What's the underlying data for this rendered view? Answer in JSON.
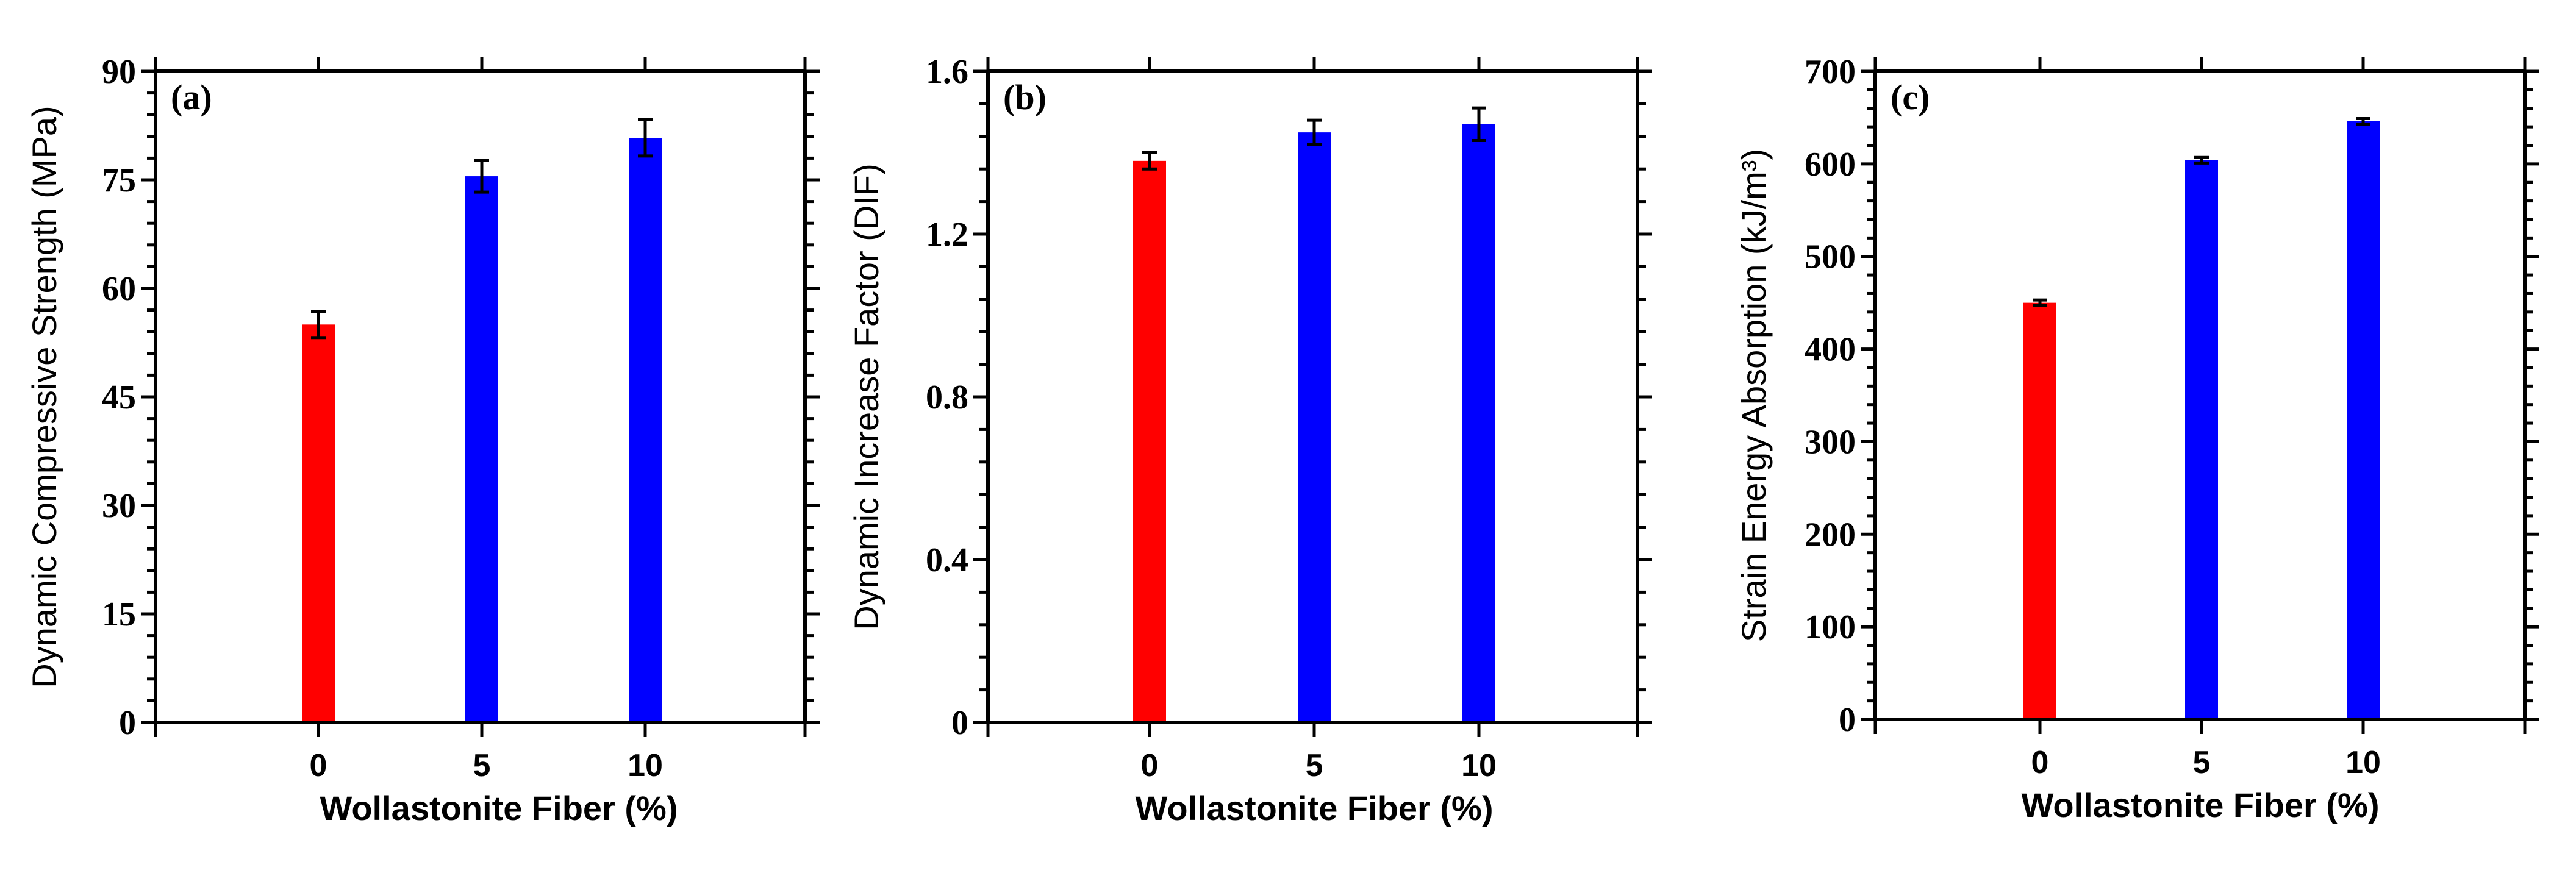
{
  "chart_data": [
    {
      "type": "bar",
      "panel_label": "(a)",
      "categories": [
        "0",
        "5",
        "10"
      ],
      "values": [
        55,
        75.5,
        80.8
      ],
      "errors": [
        1.8,
        2.2,
        2.5
      ],
      "bar_colors": [
        "#ff0000",
        "#0000ff",
        "#0000ff"
      ],
      "xlabel": "Wollastonite Fiber  (%)",
      "ylabel": "Dynamic Compressive Strength (MPa)",
      "ylim": [
        0,
        90
      ],
      "yticks": [
        0,
        15,
        30,
        45,
        60,
        75,
        90
      ],
      "ytick_labels": [
        "0",
        "15",
        "30",
        "45",
        "60",
        "75",
        "90"
      ],
      "grid": false
    },
    {
      "type": "bar",
      "panel_label": "(b)",
      "categories": [
        "0",
        "5",
        "10"
      ],
      "values": [
        1.38,
        1.45,
        1.47
      ],
      "errors": [
        0.02,
        0.03,
        0.04
      ],
      "bar_colors": [
        "#ff0000",
        "#0000ff",
        "#0000ff"
      ],
      "xlabel": "Wollastonite Fiber  (%)",
      "ylabel": "Dynamic Increase Factor (DIF)",
      "ylim": [
        0,
        1.6
      ],
      "yticks": [
        0,
        0.4,
        0.8,
        1.2,
        1.6
      ],
      "ytick_labels": [
        "0",
        "0.4",
        "0.8",
        "1.2",
        "1.6"
      ],
      "grid": false
    },
    {
      "type": "bar",
      "panel_label": "(c)",
      "categories": [
        "0",
        "5",
        "10"
      ],
      "values": [
        450,
        604,
        646
      ],
      "errors": [
        3,
        3,
        3
      ],
      "bar_colors": [
        "#ff0000",
        "#0000ff",
        "#0000ff"
      ],
      "xlabel": "Wollastonite Fiber  (%)",
      "ylabel": "Strain Energy Absorption (kJ/m³)",
      "ylim": [
        0,
        700
      ],
      "yticks": [
        0,
        100,
        200,
        300,
        400,
        500,
        600,
        700
      ],
      "ytick_labels": [
        "0",
        "100",
        "200",
        "300",
        "400",
        "500",
        "600",
        "700"
      ],
      "grid": false
    }
  ]
}
